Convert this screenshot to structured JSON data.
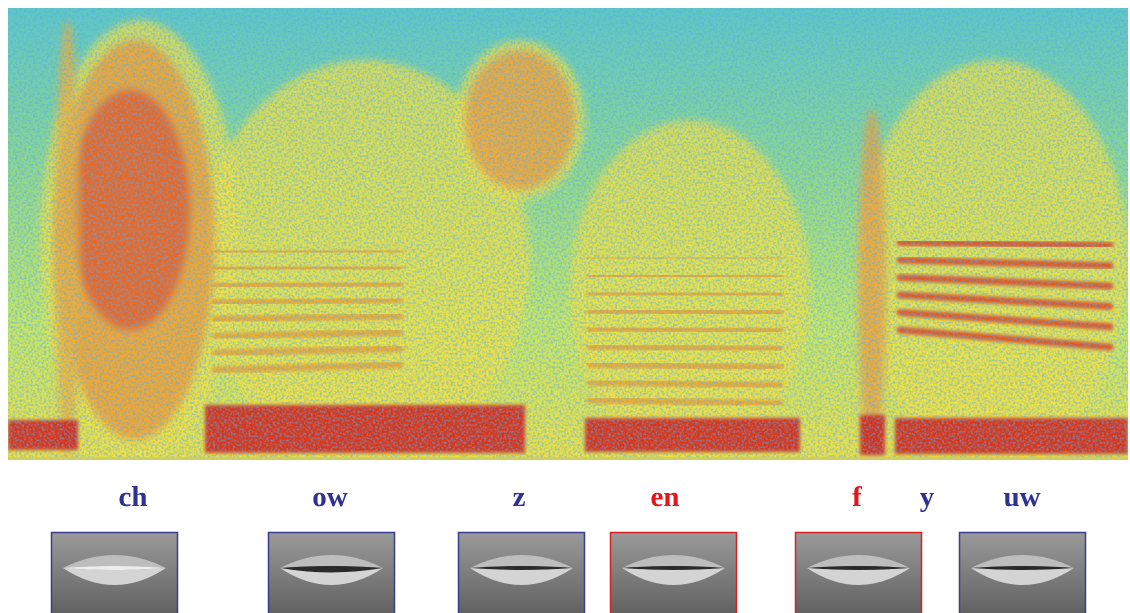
{
  "phonemes": [
    {
      "label": "ch",
      "color": "#2e3192"
    },
    {
      "label": "ow",
      "color": "#2e3192"
    },
    {
      "label": "z",
      "color": "#2e3192"
    },
    {
      "label": "en",
      "color": "#e8141b"
    },
    {
      "label": "f",
      "color": "#e8141b"
    },
    {
      "label": "y",
      "color": "#2e3192"
    },
    {
      "label": "uw",
      "color": "#2e3192"
    }
  ],
  "lips": [
    {
      "border": "#3b3b8f"
    },
    {
      "border": "#3b3b8f"
    },
    {
      "border": "#3b3b8f"
    },
    {
      "border": "#d92020"
    },
    {
      "border": "#d92020"
    },
    {
      "border": "#3b3b8f"
    }
  ]
}
